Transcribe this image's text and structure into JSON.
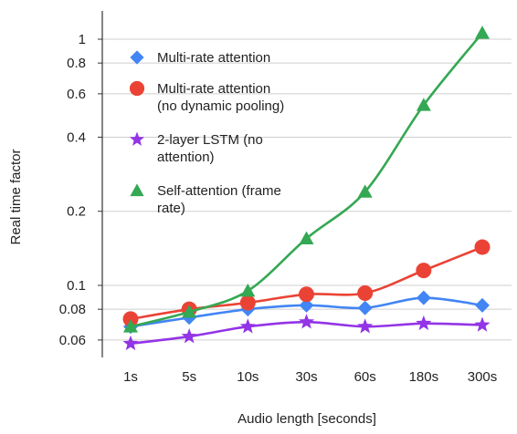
{
  "chart_data": {
    "type": "line",
    "title": "",
    "xlabel": "Audio length [seconds]",
    "ylabel": "Real time factor",
    "categories": [
      "1s",
      "5s",
      "10s",
      "30s",
      "60s",
      "180s",
      "300s"
    ],
    "yscale": "log",
    "ylim": [
      0.05,
      1.15
    ],
    "yticks": [
      {
        "value": 0.06,
        "label": "0.06"
      },
      {
        "value": 0.08,
        "label": "0.08"
      },
      {
        "value": 0.1,
        "label": "0.1"
      },
      {
        "value": 0.2,
        "label": "0.2"
      },
      {
        "value": 0.4,
        "label": "0.4"
      },
      {
        "value": 0.6,
        "label": "0.6"
      },
      {
        "value": 0.8,
        "label": "0.8"
      },
      {
        "value": 1,
        "label": "1"
      }
    ],
    "grid": true,
    "legend_position": "top-left",
    "series": [
      {
        "name": "Multi-rate attention",
        "name_lines": [
          "Multi-rate attention"
        ],
        "color": "#4285F4",
        "marker": "diamond",
        "values": [
          0.068,
          0.074,
          0.08,
          0.083,
          0.081,
          0.089,
          0.083
        ]
      },
      {
        "name": "Multi-rate attention (no dynamic pooling)",
        "name_lines": [
          "Multi-rate attention",
          "(no dynamic pooling)"
        ],
        "color": "#EA4335",
        "marker": "circle",
        "values": [
          0.073,
          0.08,
          0.085,
          0.092,
          0.093,
          0.115,
          0.143
        ]
      },
      {
        "name": "2-layer LSTM (no attention)",
        "name_lines": [
          "2-layer LSTM (no",
          "attention)"
        ],
        "color": "#9334E6",
        "marker": "star",
        "values": [
          0.058,
          0.062,
          0.068,
          0.071,
          0.068,
          0.07,
          0.069
        ]
      },
      {
        "name": "Self-attention (frame rate)",
        "name_lines": [
          "Self-attention (frame",
          "rate)"
        ],
        "color": "#34A853",
        "marker": "triangle",
        "values": [
          0.068,
          0.078,
          0.095,
          0.155,
          0.24,
          0.54,
          1.06
        ]
      }
    ]
  }
}
